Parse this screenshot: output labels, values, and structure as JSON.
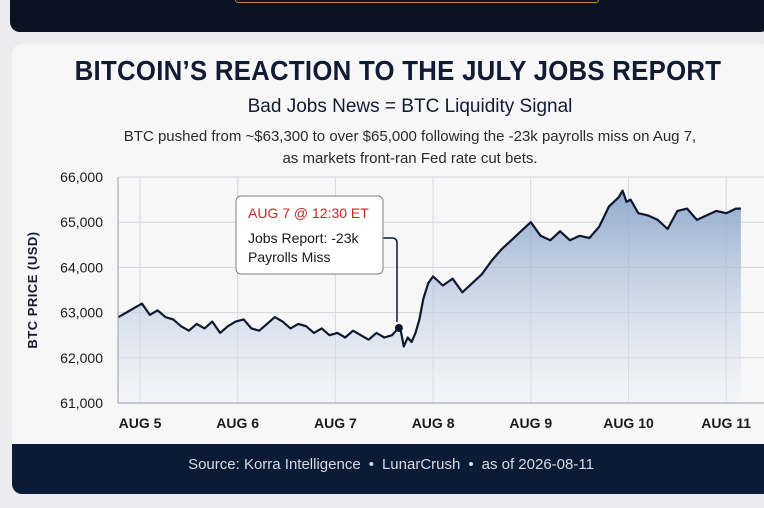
{
  "header": {
    "title": "BITCOIN’S REACTION TO THE JULY JOBS REPORT",
    "subtitle": "Bad Jobs News = BTC Liquidity Signal",
    "description_line1": "BTC pushed from ~$63,300 to over $65,000 following the -23k payrolls miss on Aug 7,",
    "description_line2": "as markets front-ran Fed rate cut bets."
  },
  "annotation": {
    "time_label": "AUG 7 @ 12:30 ET",
    "line1": "Jobs Report: -23k",
    "line2": "Payrolls Miss",
    "x": 3.65,
    "y": 62660
  },
  "footer": {
    "source_label": "Source: Korra Intelligence",
    "source_2": "LunarCrush",
    "as_of": "as of 2026-08-11",
    "separator": "•"
  },
  "colors": {
    "navy": "#111b33",
    "line": "#0e1830",
    "fill_top": "#7e9cc4",
    "fill_bottom": "#eef2f8",
    "accent_red": "#c8281e",
    "grid": "#d4d7dc"
  },
  "chart_data": {
    "type": "area",
    "ylabel": "BTC PRICE (USD)",
    "xlabel": "",
    "ylim": [
      61000,
      66000
    ],
    "xlim": [
      0.78,
      7.15
    ],
    "yticks": [
      61000,
      62000,
      63000,
      64000,
      65000,
      66000
    ],
    "ytick_labels": [
      "61,000",
      "62,000",
      "63,000",
      "64,000",
      "65,000",
      "66,000"
    ],
    "xticks": [
      1,
      2,
      3,
      4,
      5,
      6,
      7
    ],
    "xtick_labels": [
      "AUG 5",
      "AUG 6",
      "AUG 7",
      "AUG 8",
      "AUG 9",
      "AUG 10",
      "AUG 11"
    ],
    "grid": true,
    "series": [
      {
        "x": [
          0.78,
          0.86,
          0.94,
          1.02,
          1.1,
          1.18,
          1.26,
          1.34,
          1.42,
          1.5,
          1.58,
          1.66,
          1.74,
          1.82,
          1.9,
          1.98,
          2.06,
          2.14,
          2.22,
          2.3,
          2.38,
          2.46,
          2.54,
          2.62,
          2.7,
          2.78,
          2.86,
          2.94,
          3.02,
          3.1,
          3.18,
          3.26,
          3.34,
          3.42,
          3.5,
          3.58,
          3.66,
          3.7,
          3.74,
          3.78,
          3.82,
          3.86,
          3.9,
          3.95,
          4.0,
          4.1,
          4.2,
          4.3,
          4.4,
          4.5,
          4.6,
          4.7,
          4.8,
          4.9,
          5.0,
          5.1,
          5.2,
          5.3,
          5.4,
          5.5,
          5.6,
          5.7,
          5.8,
          5.9,
          5.94,
          5.98,
          6.02,
          6.1,
          6.2,
          6.3,
          6.4,
          6.5,
          6.6,
          6.7,
          6.8,
          6.9,
          7.0,
          7.1,
          7.15
        ],
        "y": [
          62900,
          63000,
          63100,
          63200,
          62950,
          63050,
          62900,
          62850,
          62700,
          62600,
          62750,
          62650,
          62800,
          62550,
          62700,
          62800,
          62850,
          62650,
          62600,
          62750,
          62900,
          62800,
          62650,
          62750,
          62700,
          62550,
          62650,
          62500,
          62550,
          62450,
          62600,
          62500,
          62400,
          62550,
          62450,
          62500,
          62700,
          62250,
          62450,
          62350,
          62550,
          62850,
          63300,
          63650,
          63800,
          63600,
          63750,
          63450,
          63650,
          63850,
          64150,
          64400,
          64600,
          64800,
          65000,
          64700,
          64600,
          64800,
          64600,
          64700,
          64650,
          64900,
          65350,
          65550,
          65700,
          65450,
          65500,
          65200,
          65150,
          65050,
          64850,
          65250,
          65300,
          65050,
          65150,
          65250,
          65200,
          65300,
          65300
        ]
      }
    ]
  }
}
